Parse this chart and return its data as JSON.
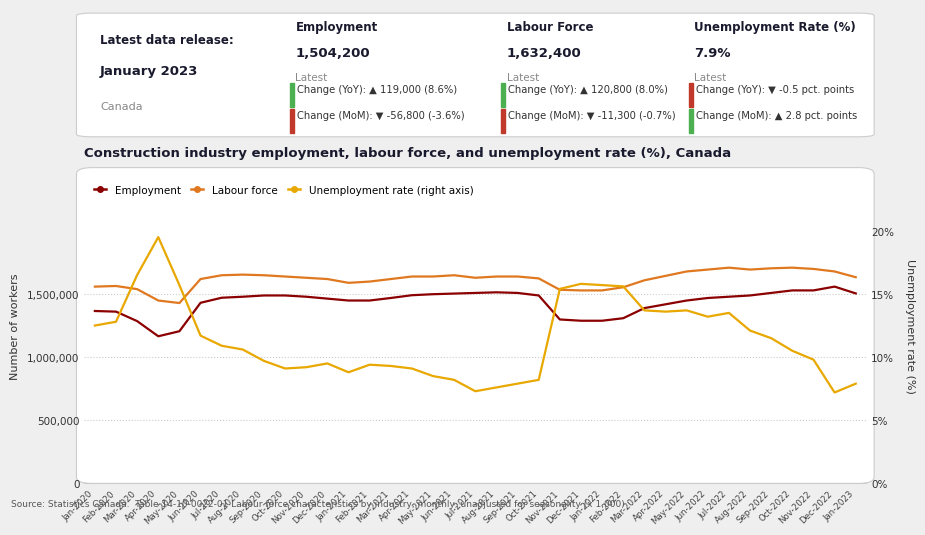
{
  "title": "Construction industry employment, labour force, and unemployment rate (%), Canada",
  "months": [
    "Jan-2020",
    "Feb-2020",
    "Mar-2020",
    "Apr-2020",
    "May-2020",
    "Jun-2020",
    "Jul-2020",
    "Aug-2020",
    "Sep-2020",
    "Oct-2020",
    "Nov-2020",
    "Dec-2020",
    "Jan-2021",
    "Feb-2021",
    "Mar-2021",
    "Apr-2021",
    "May-2021",
    "Jun-2021",
    "Jul-2021",
    "Aug-2021",
    "Sep-2021",
    "Oct-2021",
    "Nov-2021",
    "Dec-2021",
    "Jan-2022",
    "Feb-2022",
    "Mar-2022",
    "Apr-2022",
    "May-2022",
    "Jun-2022",
    "Jul-2022",
    "Aug-2022",
    "Sep-2022",
    "Oct-2022",
    "Nov-2022",
    "Dec-2022",
    "Jan-2023"
  ],
  "employment": [
    1365000,
    1360000,
    1285000,
    1165000,
    1205000,
    1430000,
    1470000,
    1478000,
    1488000,
    1488000,
    1478000,
    1463000,
    1448000,
    1448000,
    1468000,
    1490000,
    1498000,
    1503000,
    1508000,
    1513000,
    1508000,
    1488000,
    1298000,
    1288000,
    1288000,
    1308000,
    1388000,
    1418000,
    1448000,
    1468000,
    1478000,
    1488000,
    1508000,
    1528000,
    1528000,
    1558000,
    1504200
  ],
  "labour_force": [
    1558000,
    1563000,
    1538000,
    1448000,
    1428000,
    1618000,
    1648000,
    1653000,
    1648000,
    1638000,
    1628000,
    1618000,
    1588000,
    1598000,
    1618000,
    1638000,
    1638000,
    1648000,
    1628000,
    1638000,
    1638000,
    1623000,
    1533000,
    1528000,
    1528000,
    1553000,
    1608000,
    1643000,
    1678000,
    1693000,
    1708000,
    1693000,
    1703000,
    1708000,
    1698000,
    1678000,
    1632400
  ],
  "unemployment_rate": [
    12.5,
    12.8,
    16.5,
    19.5,
    15.7,
    11.7,
    10.9,
    10.6,
    9.7,
    9.1,
    9.2,
    9.5,
    8.8,
    9.4,
    9.3,
    9.1,
    8.5,
    8.2,
    7.3,
    7.6,
    7.9,
    8.2,
    15.4,
    15.8,
    15.7,
    15.6,
    13.7,
    13.6,
    13.7,
    13.2,
    13.5,
    12.1,
    11.5,
    10.5,
    9.8,
    7.2,
    7.9
  ],
  "employment_color": "#8B0000",
  "labour_color": "#E07820",
  "unemployment_color": "#E8A800",
  "bg_color": "#EFEFEF",
  "panel_bg": "#FFFFFF",
  "grid_color": "#CCCCCC",
  "source_text": "Source: Statistics Canada.  Table 14-10-0022-01 Labour force characteristics by industry, monthly, unadjusted for seasonality (x 1,000)"
}
